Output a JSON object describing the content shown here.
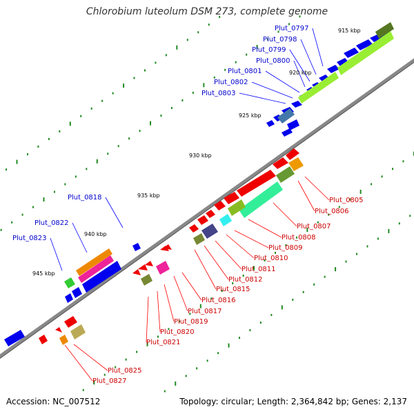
{
  "title": "Chlorobium luteolum DSM 273, complete genome",
  "accession": "Accession: NC_007512",
  "summary": "Topology: circular; Length: 2,364,842 bp; Genes: 2,137",
  "colors": {
    "forward_gene": "#0000ff",
    "reverse_gene": "#ff0000",
    "forward_label": "#0000cc",
    "reverse_label": "#cc0000",
    "backbone": "#808080",
    "tick": "#228b22"
  },
  "ticks": [
    "915 kbp",
    "920 kbp",
    "925 kbp",
    "930 kbp",
    "935 kbp",
    "940 kbp",
    "945 kbp"
  ],
  "forward_labels": [
    "Plut_0797",
    "Plut_0798",
    "Plut_0799",
    "Plut_0800",
    "Plut_0801",
    "Plut_0802",
    "Plut_0803",
    "Plut_0818",
    "Plut_0822",
    "Plut_0823"
  ],
  "reverse_labels": [
    "Plut_0805",
    "Plut_0806",
    "Plut_0807",
    "Plut_0808",
    "Plut_0809",
    "Plut_0810",
    "Plut_0811",
    "Plut_0812",
    "Plut_0815",
    "Plut_0816",
    "Plut_0817",
    "Plut_0819",
    "Plut_0820",
    "Plut_0821",
    "Plut_0825",
    "Plut_0827"
  ]
}
